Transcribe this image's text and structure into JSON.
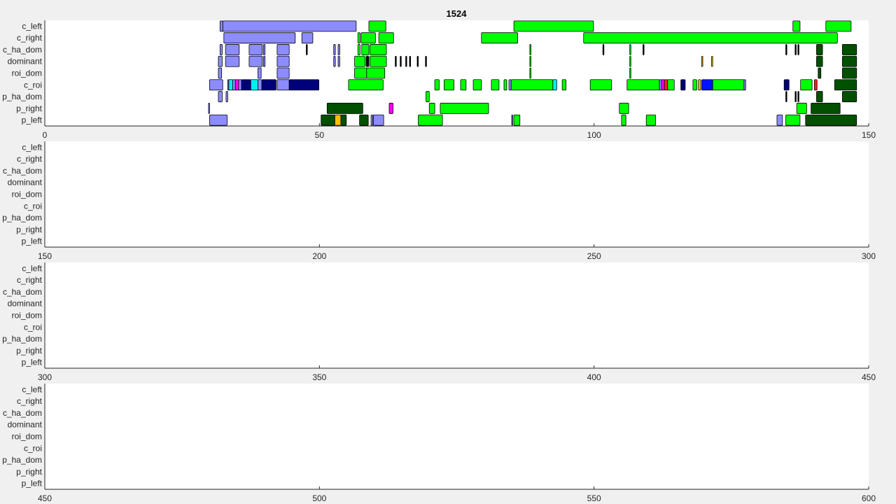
{
  "chart_data": {
    "type": "broken-barh",
    "title": "1524",
    "rows": [
      "p_left",
      "p_right",
      "p_ha_dom",
      "c_roi",
      "roi_dom",
      "dominant",
      "c_ha_dom",
      "c_right",
      "c_left"
    ],
    "colors": {
      "light_blue": "#8c8cff",
      "green": "#00ff00",
      "dark_green": "#005000",
      "navy": "#00007a",
      "blue": "#0014ff",
      "cyan": "#00f0f0",
      "magenta": "#ff00ff",
      "orange": "#ffbf00",
      "red": "#ff2020",
      "black": "#000000"
    },
    "panels": [
      {
        "xlim": [
          0,
          150
        ],
        "xticks": [
          0,
          50,
          100,
          150
        ]
      },
      {
        "xlim": [
          150,
          300
        ],
        "xticks": [
          150,
          200,
          250,
          300
        ]
      },
      {
        "xlim": [
          300,
          450
        ],
        "xticks": [
          300,
          350,
          400,
          450
        ]
      },
      {
        "xlim": [
          450,
          600
        ],
        "xticks": [
          450,
          500,
          550,
          600
        ]
      }
    ],
    "segments": [
      {
        "row": "c_left",
        "start": 31.9,
        "end": 32.4,
        "color": "light_blue"
      },
      {
        "row": "c_left",
        "start": 32.4,
        "end": 56.7,
        "color": "light_blue"
      },
      {
        "row": "c_left",
        "start": 59.0,
        "end": 62.1,
        "color": "green"
      },
      {
        "row": "c_left",
        "start": 85.4,
        "end": 99.9,
        "color": "green"
      },
      {
        "row": "c_left",
        "start": 136.2,
        "end": 137.5,
        "color": "green"
      },
      {
        "row": "c_left",
        "start": 142.2,
        "end": 146.8,
        "color": "green"
      },
      {
        "row": "c_right",
        "start": 32.6,
        "end": 45.6,
        "color": "light_blue"
      },
      {
        "row": "c_right",
        "start": 46.8,
        "end": 48.8,
        "color": "light_blue"
      },
      {
        "row": "c_right",
        "start": 57.0,
        "end": 57.4,
        "color": "green"
      },
      {
        "row": "c_right",
        "start": 57.6,
        "end": 60.2,
        "color": "green"
      },
      {
        "row": "c_right",
        "start": 60.8,
        "end": 63.5,
        "color": "green"
      },
      {
        "row": "c_right",
        "start": 79.5,
        "end": 86.1,
        "color": "green"
      },
      {
        "row": "c_right",
        "start": 98.1,
        "end": 144.3,
        "color": "green"
      },
      {
        "row": "c_ha_dom",
        "start": 31.9,
        "end": 32.3,
        "color": "light_blue"
      },
      {
        "row": "c_ha_dom",
        "start": 32.9,
        "end": 35.4,
        "color": "light_blue"
      },
      {
        "row": "c_ha_dom",
        "start": 37.2,
        "end": 39.6,
        "color": "light_blue"
      },
      {
        "row": "c_ha_dom",
        "start": 39.8,
        "end": 40.1,
        "color": "light_blue"
      },
      {
        "row": "c_ha_dom",
        "start": 42.3,
        "end": 44.5,
        "color": "light_blue"
      },
      {
        "row": "c_ha_dom",
        "start": 47.6,
        "end": 47.8,
        "color": "black"
      },
      {
        "row": "c_ha_dom",
        "start": 52.6,
        "end": 52.9,
        "color": "light_blue"
      },
      {
        "row": "c_ha_dom",
        "start": 53.4,
        "end": 53.7,
        "color": "light_blue"
      },
      {
        "row": "c_ha_dom",
        "start": 57.0,
        "end": 57.4,
        "color": "green"
      },
      {
        "row": "c_ha_dom",
        "start": 57.7,
        "end": 59.0,
        "color": "green"
      },
      {
        "row": "c_ha_dom",
        "start": 59.2,
        "end": 62.2,
        "color": "green"
      },
      {
        "row": "c_ha_dom",
        "start": 88.3,
        "end": 88.5,
        "color": "green"
      },
      {
        "row": "c_ha_dom",
        "start": 101.6,
        "end": 101.8,
        "color": "black"
      },
      {
        "row": "c_ha_dom",
        "start": 106.5,
        "end": 106.7,
        "color": "green"
      },
      {
        "row": "c_ha_dom",
        "start": 108.9,
        "end": 109.1,
        "color": "black"
      },
      {
        "row": "c_ha_dom",
        "start": 134.9,
        "end": 135.1,
        "color": "black"
      },
      {
        "row": "c_ha_dom",
        "start": 136.6,
        "end": 136.8,
        "color": "black"
      },
      {
        "row": "c_ha_dom",
        "start": 137.1,
        "end": 137.3,
        "color": "black"
      },
      {
        "row": "c_ha_dom",
        "start": 140.5,
        "end": 141.6,
        "color": "dark_green"
      },
      {
        "row": "c_ha_dom",
        "start": 145.2,
        "end": 147.8,
        "color": "dark_green"
      },
      {
        "row": "dominant",
        "start": 31.6,
        "end": 32.3,
        "color": "light_blue"
      },
      {
        "row": "dominant",
        "start": 32.9,
        "end": 35.4,
        "color": "light_blue"
      },
      {
        "row": "dominant",
        "start": 37.2,
        "end": 39.6,
        "color": "light_blue"
      },
      {
        "row": "dominant",
        "start": 39.8,
        "end": 40.1,
        "color": "light_blue"
      },
      {
        "row": "dominant",
        "start": 42.3,
        "end": 44.5,
        "color": "light_blue"
      },
      {
        "row": "dominant",
        "start": 52.6,
        "end": 52.9,
        "color": "light_blue"
      },
      {
        "row": "dominant",
        "start": 53.4,
        "end": 53.7,
        "color": "light_blue"
      },
      {
        "row": "dominant",
        "start": 56.4,
        "end": 58.3,
        "color": "green"
      },
      {
        "row": "dominant",
        "start": 58.5,
        "end": 59.0,
        "color": "black"
      },
      {
        "row": "dominant",
        "start": 59.2,
        "end": 62.2,
        "color": "green"
      },
      {
        "row": "dominant",
        "start": 63.8,
        "end": 64.0,
        "color": "black"
      },
      {
        "row": "dominant",
        "start": 64.7,
        "end": 64.9,
        "color": "black"
      },
      {
        "row": "dominant",
        "start": 65.7,
        "end": 65.9,
        "color": "black"
      },
      {
        "row": "dominant",
        "start": 66.4,
        "end": 66.6,
        "color": "black"
      },
      {
        "row": "dominant",
        "start": 67.8,
        "end": 68.0,
        "color": "black"
      },
      {
        "row": "dominant",
        "start": 69.3,
        "end": 69.5,
        "color": "black"
      },
      {
        "row": "dominant",
        "start": 88.3,
        "end": 88.5,
        "color": "green"
      },
      {
        "row": "dominant",
        "start": 106.5,
        "end": 106.7,
        "color": "green"
      },
      {
        "row": "dominant",
        "start": 119.6,
        "end": 119.8,
        "color": "orange"
      },
      {
        "row": "dominant",
        "start": 121.4,
        "end": 121.6,
        "color": "orange"
      },
      {
        "row": "dominant",
        "start": 140.5,
        "end": 141.6,
        "color": "dark_green"
      },
      {
        "row": "dominant",
        "start": 145.2,
        "end": 147.8,
        "color": "dark_green"
      },
      {
        "row": "roi_dom",
        "start": 31.6,
        "end": 32.2,
        "color": "light_blue"
      },
      {
        "row": "roi_dom",
        "start": 38.8,
        "end": 39.4,
        "color": "light_blue"
      },
      {
        "row": "roi_dom",
        "start": 42.3,
        "end": 44.5,
        "color": "light_blue"
      },
      {
        "row": "roi_dom",
        "start": 56.4,
        "end": 58.6,
        "color": "green"
      },
      {
        "row": "roi_dom",
        "start": 58.6,
        "end": 61.9,
        "color": "green"
      },
      {
        "row": "roi_dom",
        "start": 88.3,
        "end": 88.5,
        "color": "green"
      },
      {
        "row": "roi_dom",
        "start": 106.5,
        "end": 106.7,
        "color": "green"
      },
      {
        "row": "roi_dom",
        "start": 140.8,
        "end": 141.3,
        "color": "dark_green"
      },
      {
        "row": "roi_dom",
        "start": 145.2,
        "end": 147.8,
        "color": "dark_green"
      },
      {
        "row": "c_roi",
        "start": 30.0,
        "end": 32.4,
        "color": "light_blue"
      },
      {
        "row": "c_roi",
        "start": 33.3,
        "end": 33.5,
        "color": "light_blue"
      },
      {
        "row": "c_roi",
        "start": 33.5,
        "end": 34.2,
        "color": "cyan"
      },
      {
        "row": "c_roi",
        "start": 34.2,
        "end": 34.7,
        "color": "light_blue"
      },
      {
        "row": "c_roi",
        "start": 34.7,
        "end": 35.3,
        "color": "magenta"
      },
      {
        "row": "c_roi",
        "start": 35.3,
        "end": 35.8,
        "color": "light_blue"
      },
      {
        "row": "c_roi",
        "start": 35.8,
        "end": 37.5,
        "color": "navy"
      },
      {
        "row": "c_roi",
        "start": 37.5,
        "end": 38.8,
        "color": "cyan"
      },
      {
        "row": "c_roi",
        "start": 38.8,
        "end": 39.5,
        "color": "light_blue"
      },
      {
        "row": "c_roi",
        "start": 39.5,
        "end": 42.1,
        "color": "navy"
      },
      {
        "row": "c_roi",
        "start": 42.3,
        "end": 44.5,
        "color": "light_blue"
      },
      {
        "row": "c_roi",
        "start": 44.5,
        "end": 49.9,
        "color": "navy"
      },
      {
        "row": "c_roi",
        "start": 55.3,
        "end": 61.6,
        "color": "green"
      },
      {
        "row": "c_roi",
        "start": 71.0,
        "end": 71.8,
        "color": "green"
      },
      {
        "row": "c_roi",
        "start": 72.7,
        "end": 74.5,
        "color": "green"
      },
      {
        "row": "c_roi",
        "start": 75.7,
        "end": 76.7,
        "color": "green"
      },
      {
        "row": "c_roi",
        "start": 78.0,
        "end": 79.5,
        "color": "green"
      },
      {
        "row": "c_roi",
        "start": 81.3,
        "end": 82.7,
        "color": "green"
      },
      {
        "row": "c_roi",
        "start": 83.6,
        "end": 84.1,
        "color": "green"
      },
      {
        "row": "c_roi",
        "start": 84.5,
        "end": 84.9,
        "color": "light_blue"
      },
      {
        "row": "c_roi",
        "start": 84.9,
        "end": 92.5,
        "color": "green"
      },
      {
        "row": "c_roi",
        "start": 92.5,
        "end": 93.2,
        "color": "cyan"
      },
      {
        "row": "c_roi",
        "start": 94.2,
        "end": 94.9,
        "color": "green"
      },
      {
        "row": "c_roi",
        "start": 99.3,
        "end": 103.2,
        "color": "green"
      },
      {
        "row": "c_roi",
        "start": 106.0,
        "end": 111.9,
        "color": "green"
      },
      {
        "row": "c_roi",
        "start": 111.9,
        "end": 112.3,
        "color": "light_blue"
      },
      {
        "row": "c_roi",
        "start": 112.3,
        "end": 112.8,
        "color": "magenta"
      },
      {
        "row": "c_roi",
        "start": 112.8,
        "end": 113.4,
        "color": "red"
      },
      {
        "row": "c_roi",
        "start": 113.4,
        "end": 114.6,
        "color": "green"
      },
      {
        "row": "c_roi",
        "start": 115.8,
        "end": 116.6,
        "color": "navy"
      },
      {
        "row": "c_roi",
        "start": 118.0,
        "end": 118.7,
        "color": "green"
      },
      {
        "row": "c_roi",
        "start": 119.0,
        "end": 119.4,
        "color": "orange"
      },
      {
        "row": "c_roi",
        "start": 119.6,
        "end": 121.6,
        "color": "blue"
      },
      {
        "row": "c_roi",
        "start": 121.6,
        "end": 127.3,
        "color": "green"
      },
      {
        "row": "c_roi",
        "start": 127.3,
        "end": 127.6,
        "color": "light_blue"
      },
      {
        "row": "c_roi",
        "start": 134.6,
        "end": 135.5,
        "color": "navy"
      },
      {
        "row": "c_roi",
        "start": 137.6,
        "end": 139.7,
        "color": "green"
      },
      {
        "row": "c_roi",
        "start": 140.1,
        "end": 140.6,
        "color": "red"
      },
      {
        "row": "c_roi",
        "start": 143.8,
        "end": 147.8,
        "color": "dark_green"
      },
      {
        "row": "p_ha_dom",
        "start": 31.6,
        "end": 32.3,
        "color": "light_blue"
      },
      {
        "row": "p_ha_dom",
        "start": 33.0,
        "end": 33.3,
        "color": "light_blue"
      },
      {
        "row": "p_ha_dom",
        "start": 69.4,
        "end": 70.0,
        "color": "green"
      },
      {
        "row": "p_ha_dom",
        "start": 134.9,
        "end": 135.1,
        "color": "black"
      },
      {
        "row": "p_ha_dom",
        "start": 136.6,
        "end": 136.8,
        "color": "black"
      },
      {
        "row": "p_ha_dom",
        "start": 137.1,
        "end": 137.3,
        "color": "black"
      },
      {
        "row": "p_ha_dom",
        "start": 140.5,
        "end": 141.6,
        "color": "dark_green"
      },
      {
        "row": "p_ha_dom",
        "start": 145.2,
        "end": 147.8,
        "color": "dark_green"
      },
      {
        "row": "p_right",
        "start": 29.8,
        "end": 30.0,
        "color": "light_blue"
      },
      {
        "row": "p_right",
        "start": 51.4,
        "end": 57.9,
        "color": "dark_green"
      },
      {
        "row": "p_right",
        "start": 62.7,
        "end": 63.4,
        "color": "magenta"
      },
      {
        "row": "p_right",
        "start": 70.0,
        "end": 71.0,
        "color": "green"
      },
      {
        "row": "p_right",
        "start": 72.0,
        "end": 80.8,
        "color": "green"
      },
      {
        "row": "p_right",
        "start": 104.6,
        "end": 106.3,
        "color": "green"
      },
      {
        "row": "p_right",
        "start": 136.9,
        "end": 138.7,
        "color": "green"
      },
      {
        "row": "p_right",
        "start": 139.5,
        "end": 144.8,
        "color": "dark_green"
      },
      {
        "row": "p_left",
        "start": 30.0,
        "end": 33.2,
        "color": "light_blue"
      },
      {
        "row": "p_left",
        "start": 50.3,
        "end": 52.8,
        "color": "dark_green"
      },
      {
        "row": "p_left",
        "start": 52.8,
        "end": 53.9,
        "color": "orange"
      },
      {
        "row": "p_left",
        "start": 53.9,
        "end": 54.9,
        "color": "dark_green"
      },
      {
        "row": "p_left",
        "start": 57.3,
        "end": 58.9,
        "color": "dark_green"
      },
      {
        "row": "p_left",
        "start": 59.4,
        "end": 59.7,
        "color": "light_blue"
      },
      {
        "row": "p_left",
        "start": 59.8,
        "end": 61.7,
        "color": "light_blue"
      },
      {
        "row": "p_left",
        "start": 68.0,
        "end": 72.4,
        "color": "green"
      },
      {
        "row": "p_left",
        "start": 85.0,
        "end": 85.2,
        "color": "light_blue"
      },
      {
        "row": "p_left",
        "start": 85.4,
        "end": 86.5,
        "color": "green"
      },
      {
        "row": "p_left",
        "start": 105.0,
        "end": 105.8,
        "color": "green"
      },
      {
        "row": "p_left",
        "start": 109.5,
        "end": 111.2,
        "color": "green"
      },
      {
        "row": "p_left",
        "start": 133.3,
        "end": 134.3,
        "color": "light_blue"
      },
      {
        "row": "p_left",
        "start": 134.9,
        "end": 137.5,
        "color": "green"
      },
      {
        "row": "p_left",
        "start": 138.5,
        "end": 147.8,
        "color": "dark_green"
      }
    ]
  }
}
